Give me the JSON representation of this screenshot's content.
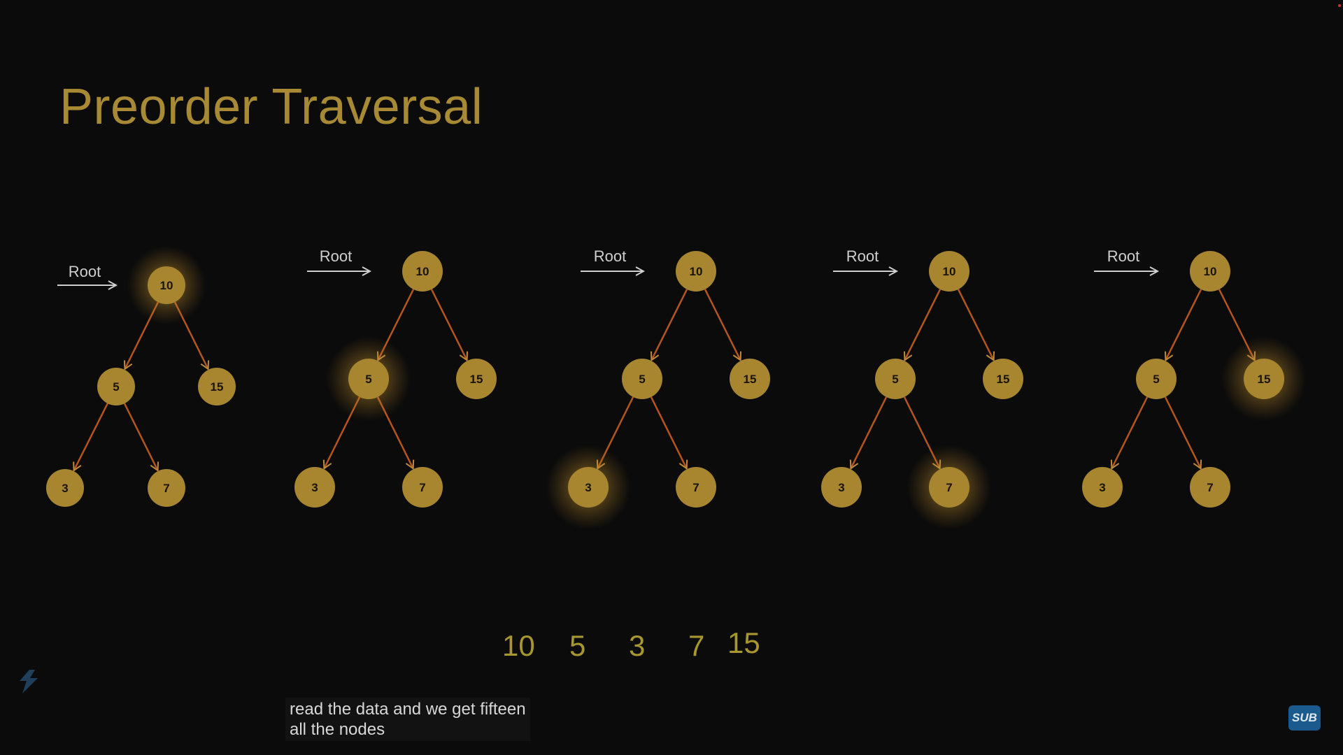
{
  "title": "Preorder Traversal",
  "root_label": "Root",
  "trees": [
    {
      "nodes": {
        "a": "10",
        "b": "5",
        "c": "15",
        "d": "3",
        "e": "7"
      },
      "highlighted": "a"
    },
    {
      "nodes": {
        "a": "10",
        "b": "5",
        "c": "15",
        "d": "3",
        "e": "7"
      },
      "highlighted": "b"
    },
    {
      "nodes": {
        "a": "10",
        "b": "5",
        "c": "15",
        "d": "3",
        "e": "7"
      },
      "highlighted": "d"
    },
    {
      "nodes": {
        "a": "10",
        "b": "5",
        "c": "15",
        "d": "3",
        "e": "7"
      },
      "highlighted": "e"
    },
    {
      "nodes": {
        "a": "10",
        "b": "5",
        "c": "15",
        "d": "3",
        "e": "7"
      },
      "highlighted": "c"
    }
  ],
  "sequence": [
    "10",
    "5",
    "3",
    "7",
    "15"
  ],
  "caption": {
    "line1": "read the data and we get fifteen",
    "line2": "all the nodes"
  },
  "badge": "SUB",
  "colors": {
    "node": "#a88630",
    "edge": "#b4551f",
    "arrowhead": "#c08a3a",
    "title": "#a88a35",
    "sequence": "#a8962e"
  }
}
